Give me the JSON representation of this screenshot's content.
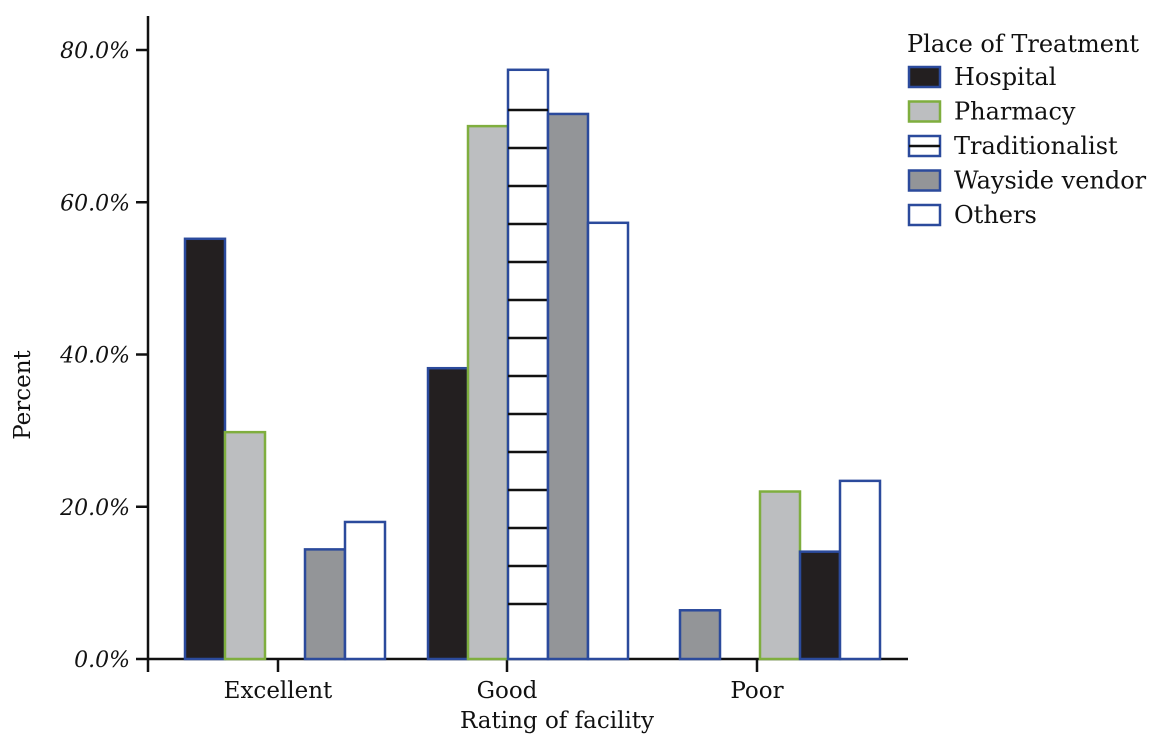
{
  "chart_data": {
    "type": "bar",
    "title": "",
    "xlabel": "Rating of facility",
    "ylabel": "Percent",
    "ylim": [
      0,
      80
    ],
    "yticks": [
      {
        "value": 0,
        "label": "0.0%"
      },
      {
        "value": 20,
        "label": "20.0%"
      },
      {
        "value": 40,
        "label": "40.0%"
      },
      {
        "value": 60,
        "label": "60.0%"
      },
      {
        "value": 80,
        "label": "80.0%"
      }
    ],
    "categories": [
      "Excellent",
      "Good",
      "Poor"
    ],
    "legend_title": "Place of Treatment",
    "legend_position": "top-right",
    "grid": false,
    "series": [
      {
        "name": "Hospital",
        "fill": "#231f20",
        "stroke": "#2b4a9c",
        "pattern": "solid"
      },
      {
        "name": "Pharmacy",
        "fill": "#bcbec0",
        "stroke": "#7fae3e",
        "pattern": "solid"
      },
      {
        "name": "Traditionalist",
        "fill": "#ffffff",
        "stroke": "#2b4a9c",
        "pattern": "horizontal-lines"
      },
      {
        "name": "Wayside vendor",
        "fill": "#939598",
        "stroke": "#2b4a9c",
        "pattern": "solid"
      },
      {
        "name": "Others",
        "fill": "#ffffff",
        "stroke": "#2b4a9c",
        "pattern": "solid"
      }
    ],
    "bars": [
      {
        "category": "Excellent",
        "series": "Hospital",
        "value": 55.2
      },
      {
        "category": "Excellent",
        "series": "Pharmacy",
        "value": 29.8
      },
      {
        "category": "Excellent",
        "series": "Wayside vendor",
        "value": 14.4
      },
      {
        "category": "Excellent",
        "series": "Others",
        "value": 18.0
      },
      {
        "category": "Good",
        "series": "Hospital",
        "value": 38.2
      },
      {
        "category": "Good",
        "series": "Pharmacy",
        "value": 70.0
      },
      {
        "category": "Good",
        "series": "Traditionalist",
        "value": 77.4
      },
      {
        "category": "Good",
        "series": "Wayside vendor",
        "value": 71.6
      },
      {
        "category": "Good",
        "series": "Others",
        "value": 57.3
      },
      {
        "category": "Poor",
        "series": "Wayside vendor",
        "value": 6.4
      },
      {
        "category": "Poor",
        "series": "Pharmacy",
        "value": 22.0
      },
      {
        "category": "Poor",
        "series": "Hospital",
        "value": 14.1
      },
      {
        "category": "Poor",
        "series": "Others",
        "value": 23.4
      }
    ]
  }
}
